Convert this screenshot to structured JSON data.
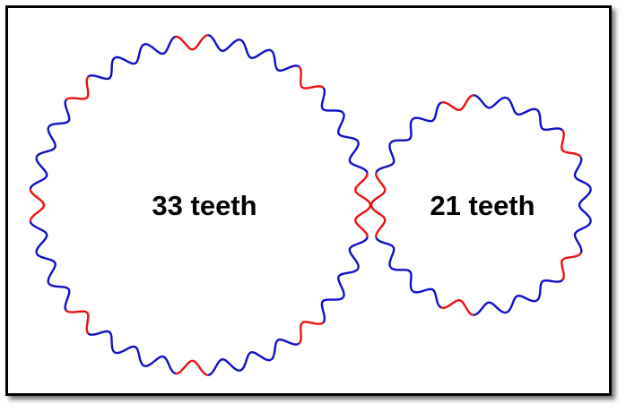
{
  "colors": {
    "primary_tooth": "#1010c8",
    "highlight_tooth": "#ee1111",
    "label": "#000000",
    "frame": "#000000"
  },
  "gears": [
    {
      "teeth": 33,
      "label": "33 teeth",
      "highlight_every": 4
    },
    {
      "teeth": 21,
      "label": "21 teeth",
      "highlight_every": 4
    }
  ]
}
